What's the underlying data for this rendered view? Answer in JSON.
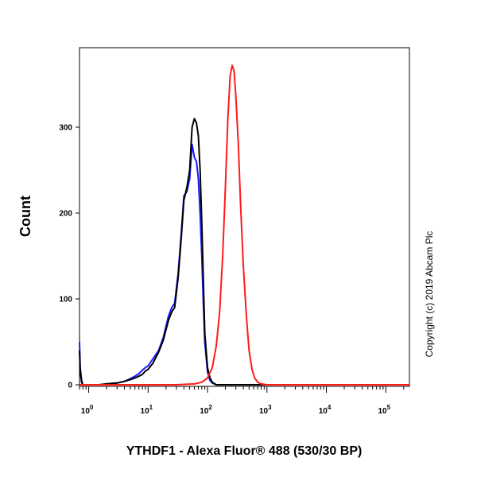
{
  "chart_data": {
    "type": "line",
    "title": "",
    "xlabel": "YTHDF1 - Alexa Fluor® 488 (530/30 BP)",
    "ylabel": "Count",
    "x_scale": "log",
    "xlim": [
      0.7,
      250000
    ],
    "ylim": [
      0,
      390
    ],
    "y_ticks": [
      0,
      100,
      200,
      300
    ],
    "x_ticks": [
      {
        "value": 1,
        "base": "10",
        "exp": "0"
      },
      {
        "value": 10,
        "base": "10",
        "exp": "1"
      },
      {
        "value": 100,
        "base": "10",
        "exp": "2"
      },
      {
        "value": 1000,
        "base": "10",
        "exp": "3"
      },
      {
        "value": 10000,
        "base": "10",
        "exp": "4"
      },
      {
        "value": 100000,
        "base": "10",
        "exp": "5"
      }
    ],
    "grid": false,
    "series": [
      {
        "color": "#1a1aff",
        "x": [
          0.7,
          0.72,
          0.76,
          0.8,
          0.85,
          1,
          1.5,
          2,
          3,
          4,
          5,
          6,
          7,
          8,
          9,
          10,
          12,
          15,
          18,
          22,
          25,
          28,
          32,
          36,
          40,
          45,
          50,
          55,
          60,
          65,
          70,
          75,
          80,
          85,
          90,
          100,
          110,
          120,
          140,
          200,
          1000,
          250000
        ],
        "y": [
          50,
          20,
          5,
          0,
          0,
          0,
          0,
          1,
          2,
          4,
          7,
          10,
          13,
          17,
          20,
          22,
          30,
          40,
          55,
          80,
          90,
          95,
          130,
          175,
          220,
          225,
          240,
          280,
          265,
          260,
          240,
          200,
          150,
          95,
          50,
          15,
          5,
          2,
          0,
          0,
          0,
          0
        ]
      },
      {
        "color": "#000000",
        "x": [
          0.7,
          0.72,
          0.76,
          0.8,
          0.85,
          1,
          1.5,
          2,
          3,
          4,
          5,
          6,
          7,
          8,
          9,
          10,
          12,
          15,
          18,
          22,
          25,
          28,
          32,
          36,
          40,
          45,
          50,
          55,
          60,
          65,
          70,
          75,
          80,
          85,
          90,
          100,
          110,
          120,
          140,
          200,
          1000,
          250000
        ],
        "y": [
          40,
          15,
          3,
          0,
          0,
          0,
          0,
          1,
          2,
          4,
          6,
          8,
          10,
          12,
          16,
          18,
          25,
          38,
          52,
          75,
          85,
          90,
          125,
          170,
          215,
          230,
          250,
          300,
          310,
          305,
          290,
          250,
          190,
          120,
          60,
          20,
          8,
          3,
          0,
          0,
          0,
          0
        ]
      },
      {
        "color": "#ff1a1a",
        "x": [
          0.7,
          10,
          30,
          60,
          80,
          100,
          120,
          140,
          160,
          180,
          200,
          220,
          240,
          260,
          280,
          300,
          330,
          360,
          400,
          450,
          500,
          560,
          620,
          700,
          800,
          1000,
          2000,
          250000
        ],
        "y": [
          0,
          0,
          0,
          1,
          3,
          8,
          20,
          45,
          85,
          150,
          230,
          310,
          360,
          372,
          365,
          335,
          280,
          210,
          140,
          80,
          40,
          18,
          8,
          3,
          1,
          0,
          0,
          0
        ]
      }
    ],
    "annotations": [
      "Copyright (c) 2019 Abcam Plc"
    ]
  }
}
